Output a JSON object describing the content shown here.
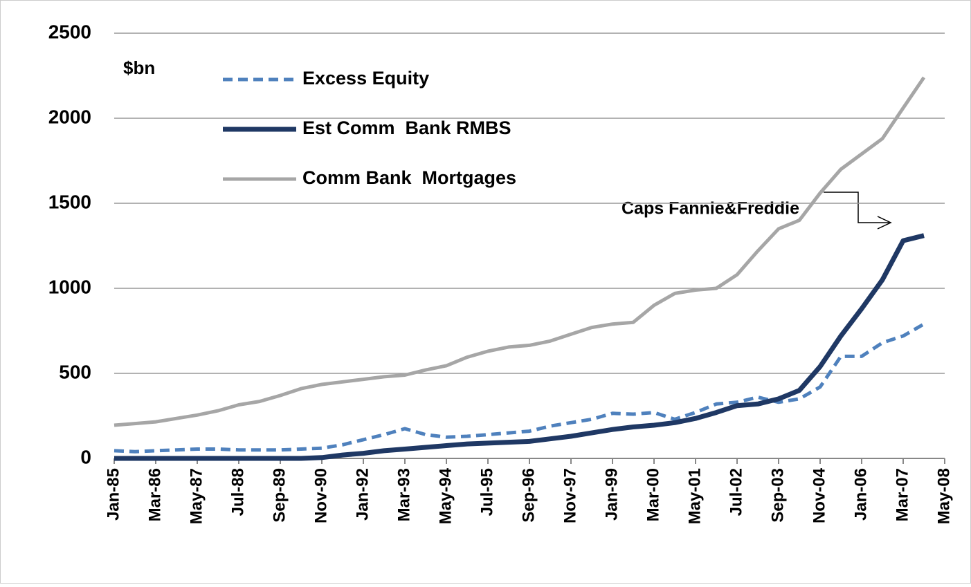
{
  "chart_data": {
    "type": "line",
    "unit_label": "$bn",
    "annotation": "Caps Fannie&Freddie",
    "categories": [
      "Jan-85",
      null,
      "Mar-86",
      null,
      "May-87",
      null,
      "Jul-88",
      null,
      "Sep-89",
      null,
      "Nov-90",
      null,
      "Jan-92",
      null,
      "Mar-93",
      null,
      "May-94",
      null,
      "Jul-95",
      null,
      "Sep-96",
      null,
      "Nov-97",
      null,
      "Jan-99",
      null,
      "Mar-00",
      null,
      "May-01",
      null,
      "Jul-02",
      null,
      "Sep-03",
      null,
      "Nov-04",
      null,
      "Jan-06",
      null,
      "Mar-07",
      null,
      "May-08"
    ],
    "series": [
      {
        "name": "Excess Equity",
        "color": "#4f81bd",
        "dash": true,
        "values": [
          45,
          40,
          45,
          50,
          55,
          55,
          50,
          50,
          50,
          55,
          60,
          80,
          110,
          140,
          175,
          140,
          125,
          130,
          140,
          150,
          160,
          190,
          210,
          230,
          265,
          260,
          270,
          230,
          270,
          320,
          330,
          360,
          330,
          350,
          420,
          600,
          600,
          680,
          720,
          790,
          null
        ]
      },
      {
        "name": "Est Comm  Bank RMBS",
        "color": "#1f3864",
        "dash": false,
        "values": [
          0,
          0,
          0,
          0,
          0,
          0,
          0,
          0,
          0,
          0,
          5,
          20,
          30,
          45,
          55,
          65,
          75,
          85,
          90,
          95,
          100,
          115,
          130,
          150,
          170,
          185,
          195,
          210,
          235,
          270,
          310,
          320,
          350,
          400,
          540,
          720,
          880,
          1050,
          1280,
          1310,
          null
        ]
      },
      {
        "name": "Comm Bank  Mortgages",
        "color": "#a6a6a6",
        "dash": false,
        "values": [
          195,
          205,
          215,
          235,
          255,
          280,
          315,
          335,
          370,
          410,
          435,
          450,
          465,
          480,
          490,
          520,
          545,
          595,
          630,
          655,
          665,
          690,
          730,
          770,
          790,
          800,
          900,
          970,
          990,
          1000,
          1080,
          1220,
          1350,
          1400,
          1560,
          1700,
          1790,
          1880,
          2060,
          2240,
          null
        ]
      }
    ],
    "ylim": [
      0,
      2500
    ],
    "yticks": [
      0,
      500,
      1000,
      1500,
      2000,
      2500
    ],
    "grid": true
  }
}
